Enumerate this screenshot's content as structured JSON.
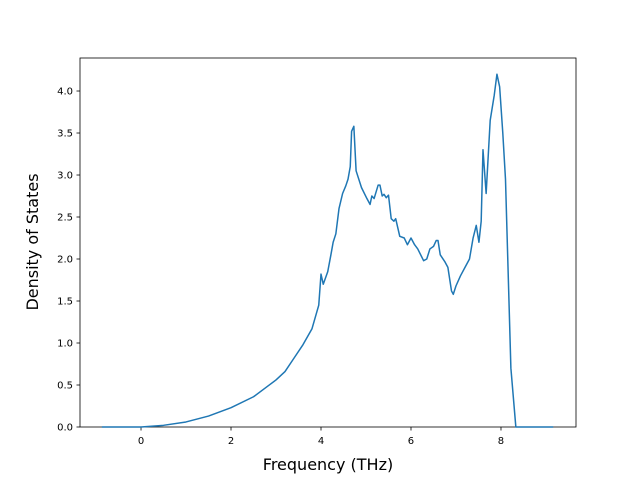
{
  "chart_data": {
    "type": "line",
    "xlabel": "Frequency (THz)",
    "ylabel": "Density of States",
    "x": [
      -0.87,
      0,
      0.5,
      1,
      1.5,
      2,
      2.5,
      2.8,
      3.0,
      3.2,
      3.4,
      3.6,
      3.8,
      3.95,
      4.0,
      4.05,
      4.15,
      4.22,
      4.27,
      4.33,
      4.4,
      4.48,
      4.55,
      4.6,
      4.65,
      4.68,
      4.73,
      4.78,
      4.9,
      5.02,
      5.09,
      5.13,
      5.18,
      5.27,
      5.31,
      5.36,
      5.4,
      5.45,
      5.5,
      5.56,
      5.62,
      5.66,
      5.75,
      5.85,
      5.92,
      6.0,
      6.08,
      6.15,
      6.28,
      6.35,
      6.42,
      6.5,
      6.56,
      6.6,
      6.65,
      6.75,
      6.82,
      6.9,
      6.94,
      7.0,
      7.1,
      7.2,
      7.3,
      7.38,
      7.45,
      7.51,
      7.56,
      7.6,
      7.67,
      7.76,
      7.85,
      7.91,
      7.97,
      8.04,
      8.1,
      8.22,
      8.33,
      9.16
    ],
    "values": [
      0,
      0,
      0.02,
      0.06,
      0.13,
      0.23,
      0.36,
      0.48,
      0.56,
      0.66,
      0.82,
      0.98,
      1.17,
      1.45,
      1.82,
      1.7,
      1.85,
      2.05,
      2.2,
      2.3,
      2.6,
      2.78,
      2.87,
      2.95,
      3.1,
      3.52,
      3.58,
      3.05,
      2.85,
      2.72,
      2.65,
      2.75,
      2.72,
      2.88,
      2.88,
      2.75,
      2.77,
      2.73,
      2.76,
      2.48,
      2.45,
      2.48,
      2.27,
      2.25,
      2.17,
      2.25,
      2.17,
      2.12,
      1.98,
      2.0,
      2.12,
      2.15,
      2.22,
      2.22,
      2.05,
      1.97,
      1.9,
      1.62,
      1.58,
      1.68,
      1.8,
      1.9,
      2.0,
      2.25,
      2.4,
      2.2,
      2.45,
      3.3,
      2.78,
      3.65,
      3.95,
      4.2,
      4.05,
      3.5,
      2.95,
      0.7,
      0,
      0
    ],
    "color": "#1f77b4",
    "xlim": [
      -1.356,
      9.667
    ],
    "xticks": [
      0,
      2,
      4,
      6,
      8
    ],
    "ylim": [
      0,
      4.393
    ],
    "yticks": [
      {
        "value": 0,
        "label": "0.0"
      },
      {
        "value": 0.5,
        "label": "0.5"
      },
      {
        "value": 1,
        "label": "1.0"
      },
      {
        "value": 1.5,
        "label": "1.5"
      },
      {
        "value": 2,
        "label": "2.0"
      },
      {
        "value": 2.5,
        "label": "2.5"
      },
      {
        "value": 3,
        "label": "3.0"
      },
      {
        "value": 3.5,
        "label": "3.5"
      },
      {
        "value": 4,
        "label": "4.0"
      }
    ],
    "grid": false
  }
}
